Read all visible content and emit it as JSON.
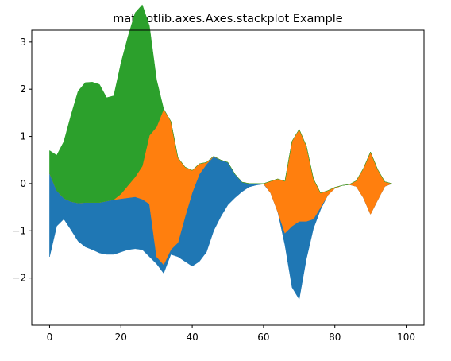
{
  "chart_data": {
    "type": "area",
    "title": "matplotlib.axes.Axes.stackplot Example",
    "xlabel": "",
    "ylabel": "",
    "xlim": [
      -5,
      105
    ],
    "ylim": [
      -3.0,
      3.25
    ],
    "xticks": [
      0,
      20,
      40,
      60,
      80,
      100
    ],
    "xtick_labels": [
      "0",
      "20",
      "40",
      "60",
      "80",
      "100"
    ],
    "yticks": [
      -2,
      -1,
      0,
      1,
      2,
      3
    ],
    "ytick_labels": [
      "−2",
      "−1",
      "0",
      "1",
      "2",
      "3"
    ],
    "grid": false,
    "legend": "none",
    "baseline": "wiggle",
    "colors": [
      "#1f77b4",
      "#ff7f0e",
      "#2ca02c"
    ],
    "x": [
      0,
      2,
      4,
      6,
      8,
      10,
      12,
      14,
      16,
      18,
      20,
      22,
      24,
      26,
      28,
      30,
      32,
      34,
      36,
      38,
      40,
      42,
      44,
      46,
      48,
      50,
      52,
      54,
      56,
      58,
      60,
      62,
      64,
      66,
      68,
      70,
      72,
      74,
      76,
      78,
      80,
      82,
      84,
      86,
      88,
      90,
      92,
      94,
      96
    ],
    "baseline_values": [
      -1.55,
      -0.9,
      -0.75,
      -0.98,
      -1.22,
      -1.34,
      -1.4,
      -1.47,
      -1.5,
      -1.5,
      -1.45,
      -1.4,
      -1.38,
      -1.4,
      -1.55,
      -1.7,
      -1.9,
      -1.5,
      -1.55,
      -1.65,
      -1.75,
      -1.65,
      -1.45,
      -1.0,
      -0.7,
      -0.45,
      -0.3,
      -0.17,
      -0.07,
      -0.03,
      -0.01,
      -0.2,
      -0.6,
      -1.3,
      -2.2,
      -2.45,
      -1.6,
      -0.95,
      -0.55,
      -0.25,
      -0.1,
      -0.04,
      -0.02,
      -0.06,
      -0.3,
      -0.65,
      -0.35,
      -0.06,
      0.0
    ],
    "series": [
      {
        "values": [
          1.77,
          0.75,
          0.44,
          0.6,
          0.81,
          0.94,
          1.0,
          1.07,
          1.13,
          1.16,
          1.13,
          1.1,
          1.1,
          1.07,
          1.12,
          0.15,
          0.18,
          0.1,
          0.3,
          0.95,
          1.56,
          1.85,
          1.86,
          1.57,
          1.2,
          0.9,
          0.5,
          0.2,
          0.07,
          0.03,
          0.01,
          0.0,
          0.0,
          0.25,
          1.3,
          1.65,
          0.8,
          0.2,
          0.05,
          0.0,
          0.0,
          0.0,
          0.0,
          0.0,
          0.0,
          0.0,
          0.0,
          0.0,
          0.0
        ]
      },
      {
        "values": [
          0.0,
          0.0,
          0.0,
          0.0,
          0.0,
          0.0,
          0.0,
          0.0,
          0.0,
          0.0,
          0.1,
          0.26,
          0.42,
          0.7,
          1.45,
          2.75,
          3.3,
          2.72,
          1.8,
          1.05,
          0.47,
          0.22,
          0.04,
          0.01,
          0.0,
          0.0,
          0.0,
          0.0,
          0.0,
          0.0,
          0.0,
          0.25,
          0.7,
          1.1,
          1.8,
          1.95,
          1.6,
          0.85,
          0.3,
          0.1,
          0.02,
          0.0,
          0.0,
          0.12,
          0.62,
          1.32,
          0.65,
          0.1,
          0.0
        ]
      },
      {
        "values": [
          0.48,
          0.75,
          1.2,
          1.83,
          2.37,
          2.54,
          2.55,
          2.5,
          2.19,
          2.2,
          2.77,
          3.16,
          3.48,
          3.42,
          2.32,
          1.0,
          0.0,
          0.0,
          0.0,
          0.0,
          0.0,
          0.0,
          0.0,
          0.0,
          0.0,
          0.0,
          0.0,
          0.0,
          0.0,
          0.0,
          0.0,
          0.0,
          0.0,
          0.0,
          0.0,
          0.0,
          0.0,
          0.0,
          0.0,
          0.0,
          0.0,
          0.0,
          0.0,
          0.0,
          0.0,
          0.0,
          0.0,
          0.0,
          0.0
        ]
      }
    ]
  }
}
